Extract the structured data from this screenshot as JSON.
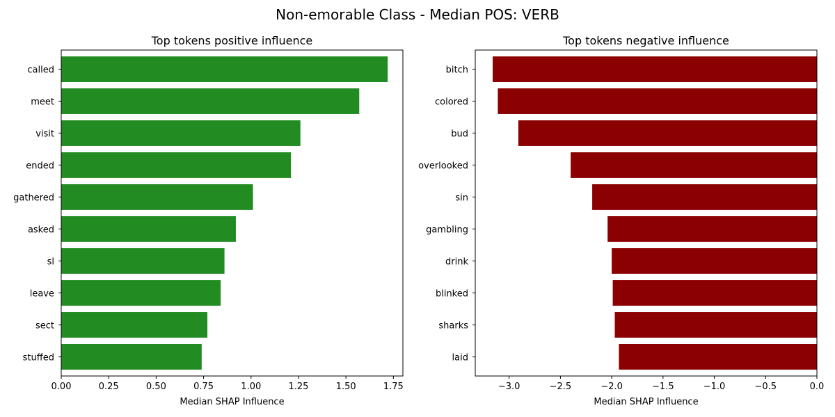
{
  "figure_title": "Non-emorable Class - Median POS: VERB",
  "chart_data": [
    {
      "type": "bar",
      "orientation": "horizontal",
      "title": "Top tokens positive influence",
      "xlabel": "Median SHAP Influence",
      "ylabel": "",
      "categories": [
        "called",
        "meet",
        "visit",
        "ended",
        "gathered",
        "asked",
        "sl",
        "leave",
        "sect",
        "stuffed"
      ],
      "values": [
        1.72,
        1.57,
        1.26,
        1.21,
        1.01,
        0.92,
        0.86,
        0.84,
        0.77,
        0.74
      ],
      "xlim": [
        0,
        1.8
      ],
      "xticks": [
        "0.00",
        "0.25",
        "0.50",
        "0.75",
        "1.00",
        "1.25",
        "1.50",
        "1.75"
      ],
      "xtick_values": [
        0,
        0.25,
        0.5,
        0.75,
        1.0,
        1.25,
        1.5,
        1.75
      ],
      "color": "#228b22",
      "grid": false
    },
    {
      "type": "bar",
      "orientation": "horizontal",
      "title": "Top tokens negative influence",
      "xlabel": "Median SHAP Influence",
      "ylabel": "",
      "categories": [
        "bitch",
        "colored",
        "bud",
        "overlooked",
        "sin",
        "gambling",
        "drink",
        "blinked",
        "sharks",
        "laid"
      ],
      "values": [
        -3.16,
        -3.11,
        -2.91,
        -2.4,
        -2.19,
        -2.04,
        -2.0,
        -1.99,
        -1.97,
        -1.93
      ],
      "xlim": [
        -3.33,
        0
      ],
      "xticks": [
        "−3.0",
        "−2.5",
        "−2.0",
        "−1.5",
        "−1.0",
        "−0.5",
        "0.0"
      ],
      "xtick_values": [
        -3.0,
        -2.5,
        -2.0,
        -1.5,
        -1.0,
        -0.5,
        0.0
      ],
      "color": "#8b0000",
      "grid": false
    }
  ]
}
